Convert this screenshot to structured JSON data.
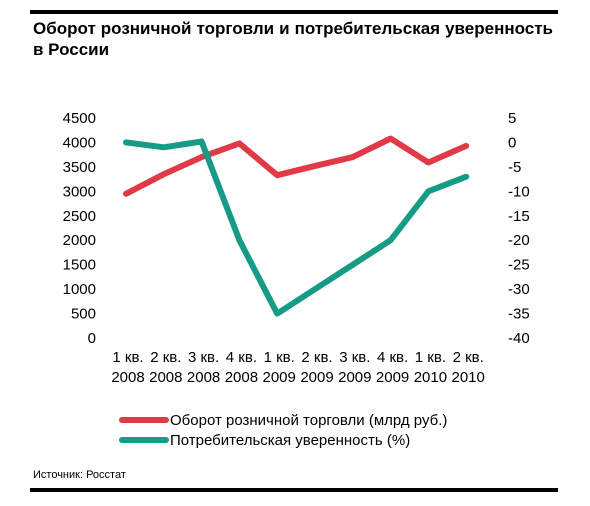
{
  "title": "Оборот розничной торговли и потребительская уверенность в России",
  "source": "Источник: Росстат",
  "chart_data": {
    "type": "line",
    "title": "Оборот розничной торговли и потребительская уверенность в России",
    "categories": [
      [
        "1 кв.",
        "2008"
      ],
      [
        "2 кв.",
        "2008"
      ],
      [
        "3 кв.",
        "2008"
      ],
      [
        "4 кв.",
        "2008"
      ],
      [
        "1 кв.",
        "2009"
      ],
      [
        "2 кв.",
        "2009"
      ],
      [
        "3 кв.",
        "2009"
      ],
      [
        "4 кв.",
        "2009"
      ],
      [
        "1 кв.",
        "2010"
      ],
      [
        "2 кв.",
        "2010"
      ]
    ],
    "y_left": {
      "ylim": [
        0,
        4500
      ],
      "ticks": [
        "4500",
        "4000",
        "3500",
        "3000",
        "2500",
        "2000",
        "1500",
        "1000",
        "500",
        "0"
      ]
    },
    "y_right": {
      "ylim": [
        -40,
        5
      ],
      "ticks": [
        "5",
        "0",
        "-5",
        "-10",
        "-15",
        "-20",
        "-25",
        "-30",
        "-35",
        "-40"
      ]
    },
    "grid": false,
    "legend_position": "bottom",
    "series": [
      {
        "name": "Оборот розничной торговли (млрд руб.)",
        "axis": "left",
        "color": "#e03a47",
        "values": [
          2950,
          3350,
          3700,
          3980,
          3330,
          3520,
          3700,
          4080,
          3590,
          3930
        ]
      },
      {
        "name": "Потребительская уверенность (%)",
        "axis": "right",
        "color": "#169b86",
        "values": [
          0,
          -1,
          0.2,
          -20,
          -35,
          -30,
          -25,
          -20,
          -10,
          -7
        ]
      }
    ]
  }
}
